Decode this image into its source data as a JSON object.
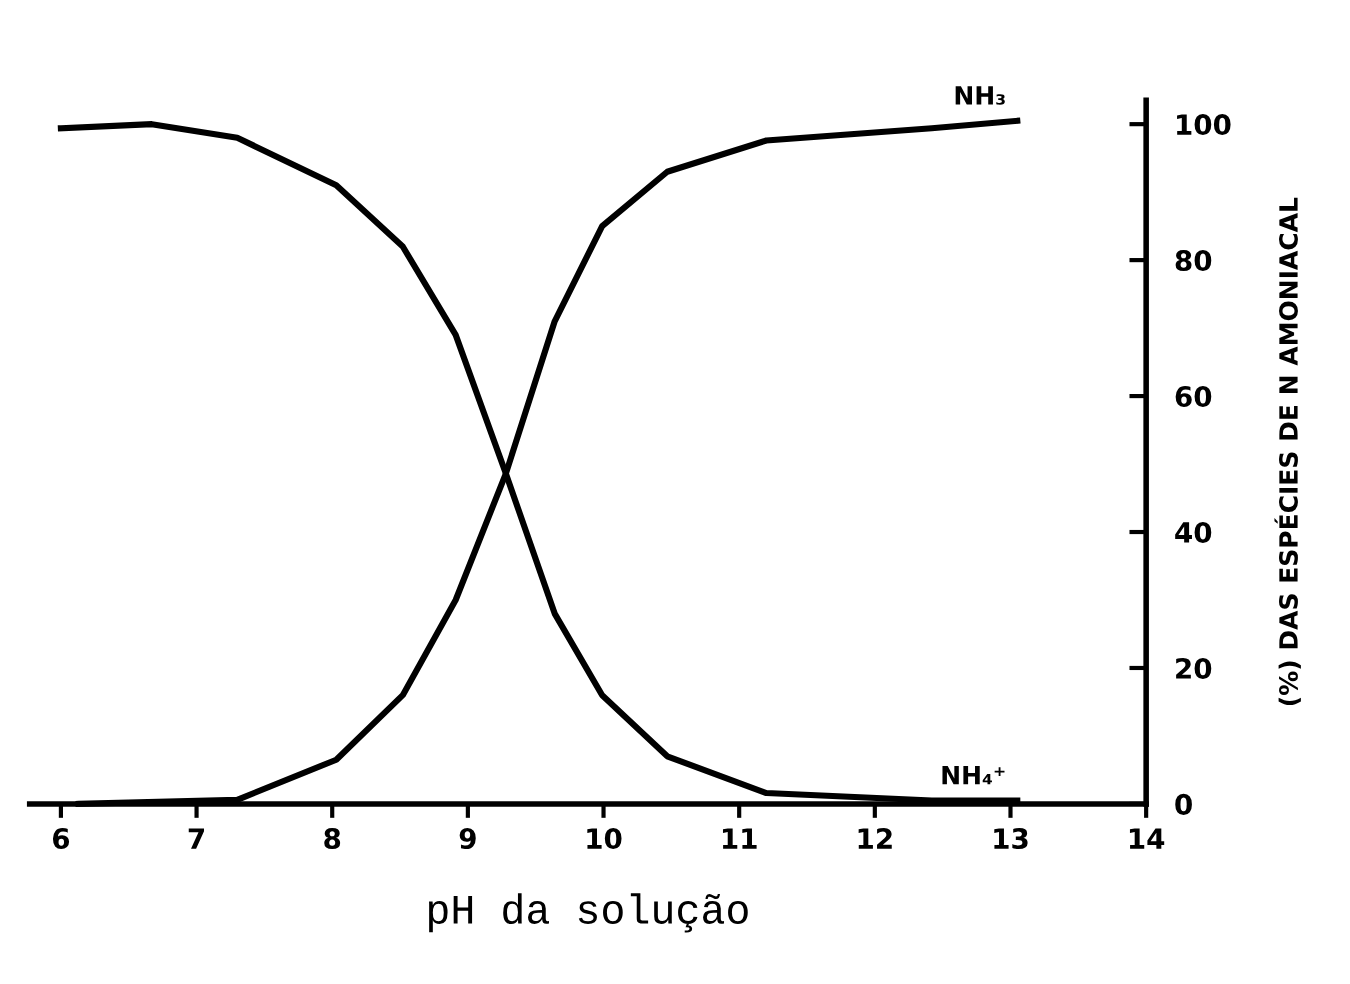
{
  "chart_data": {
    "type": "line",
    "xlabel": "pH da solução",
    "ylabel": "(%) DAS ESPÉCIES DE N AMONIACAL",
    "xlim": [
      5.77,
      14
    ],
    "xticks": [
      6,
      7,
      8,
      9,
      10,
      11,
      12,
      13,
      14
    ],
    "ylim": [
      0,
      103.5
    ],
    "yticks": [
      0,
      20,
      40,
      60,
      80,
      100
    ],
    "grid": false,
    "legend": false,
    "marker": "none",
    "line_style": "solid",
    "series": [
      {
        "name": "NH₄⁺",
        "color": "#000000",
        "x": [
          6.0,
          6.67,
          7.3,
          8.03,
          8.52,
          8.91,
          9.28,
          9.64,
          9.99,
          10.47,
          11.2,
          12.42,
          13.05
        ],
        "values": [
          99.4,
          100,
          98,
          91,
          82,
          69,
          48.6,
          28,
          16,
          7,
          1.6,
          0.5,
          0.5
        ]
      },
      {
        "name": "NH₃",
        "color": "#000000",
        "x": [
          6.13,
          7.3,
          8.03,
          8.52,
          8.91,
          9.28,
          9.64,
          9.99,
          10.47,
          11.2,
          12.42,
          13.05
        ],
        "values": [
          0,
          0.6,
          6.5,
          16,
          30,
          48.6,
          71,
          85,
          93,
          97.6,
          99.4,
          100.5
        ]
      }
    ]
  }
}
